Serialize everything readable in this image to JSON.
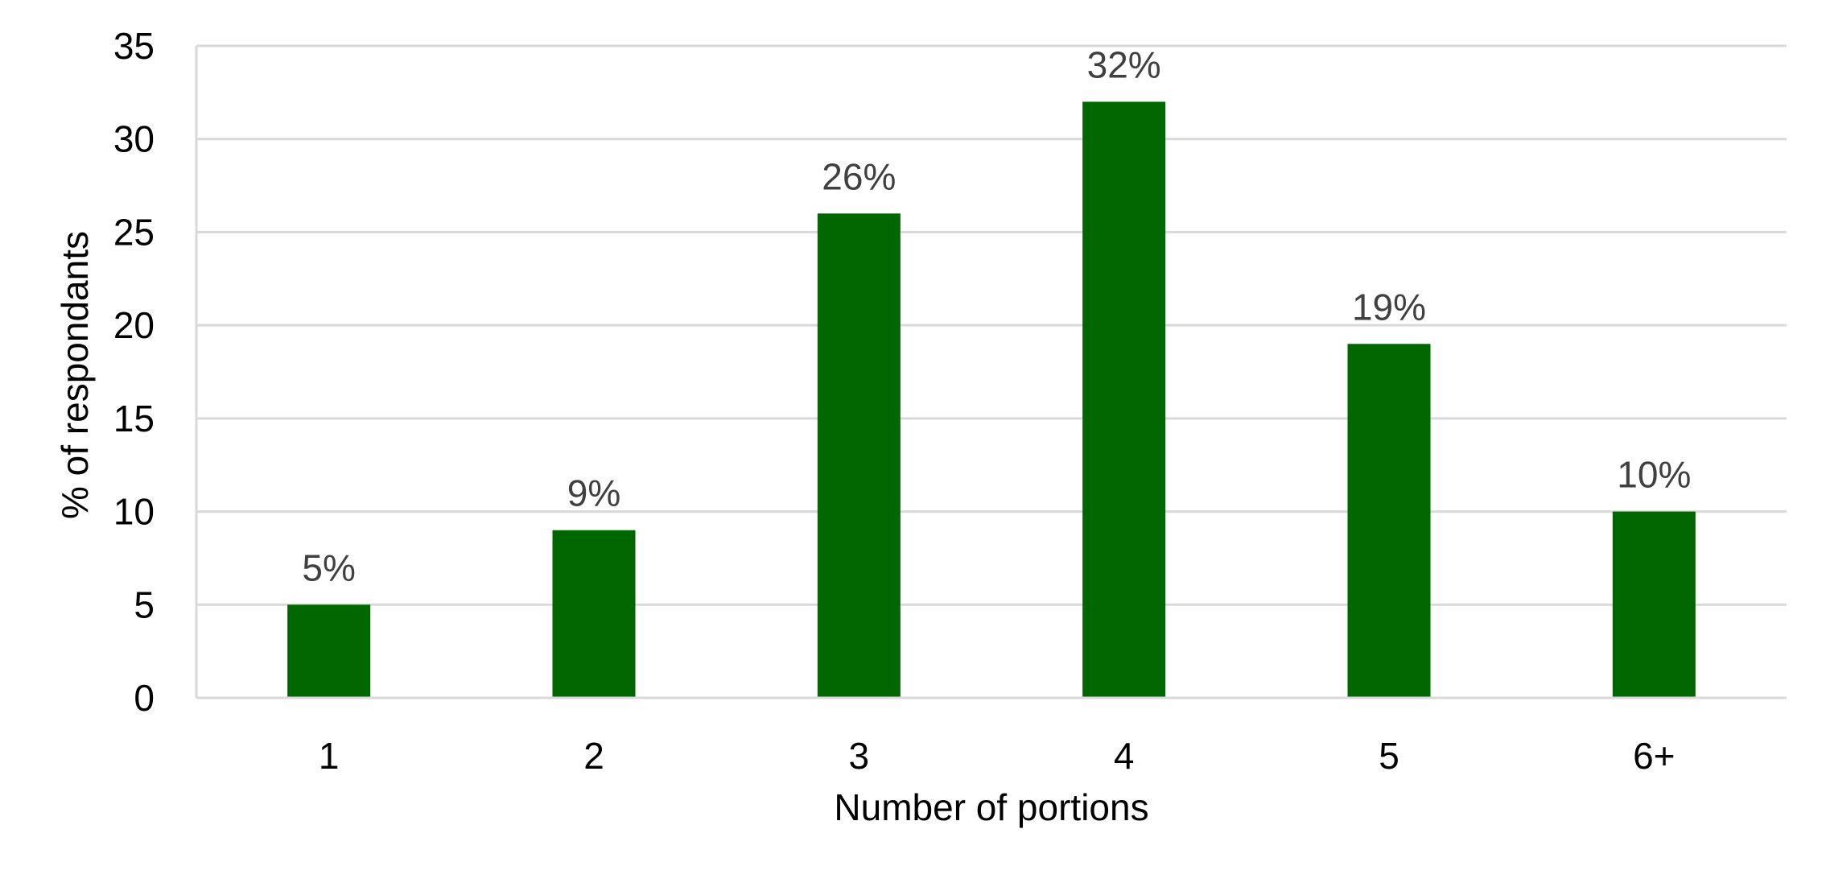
{
  "chart_data": {
    "type": "bar",
    "title": "",
    "categories": [
      "1",
      "2",
      "3",
      "4",
      "5",
      "6+"
    ],
    "values": [
      5,
      9,
      26,
      32,
      19,
      10
    ],
    "data_labels": [
      "5%",
      "9%",
      "26%",
      "32%",
      "19%",
      "10%"
    ],
    "xlabel": "Number of portions",
    "ylabel": "% of respondants",
    "ylim": [
      0,
      35
    ],
    "yticks": [
      0,
      5,
      10,
      15,
      20,
      25,
      30,
      35
    ],
    "ytick_labels": [
      "0",
      "5",
      "10",
      "15",
      "20",
      "25",
      "30",
      "35"
    ],
    "grid": true,
    "legend": "none",
    "bar_color": "#006600"
  }
}
